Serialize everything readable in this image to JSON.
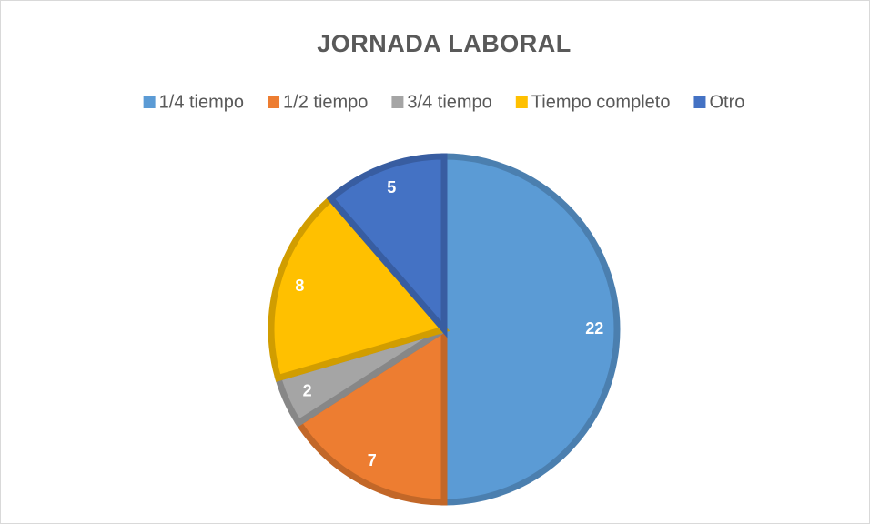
{
  "chart_data": {
    "type": "pie",
    "title": "JORNADA LABORAL",
    "categories": [
      "1/4 tiempo",
      "1/2 tiempo",
      "3/4 tiempo",
      "Tiempo completo",
      "Otro"
    ],
    "values": [
      22,
      7,
      2,
      8,
      5
    ],
    "colors": [
      "#5b9bd5",
      "#ed7d31",
      "#a5a5a5",
      "#ffc000",
      "#4472c4"
    ],
    "legend": "top"
  }
}
